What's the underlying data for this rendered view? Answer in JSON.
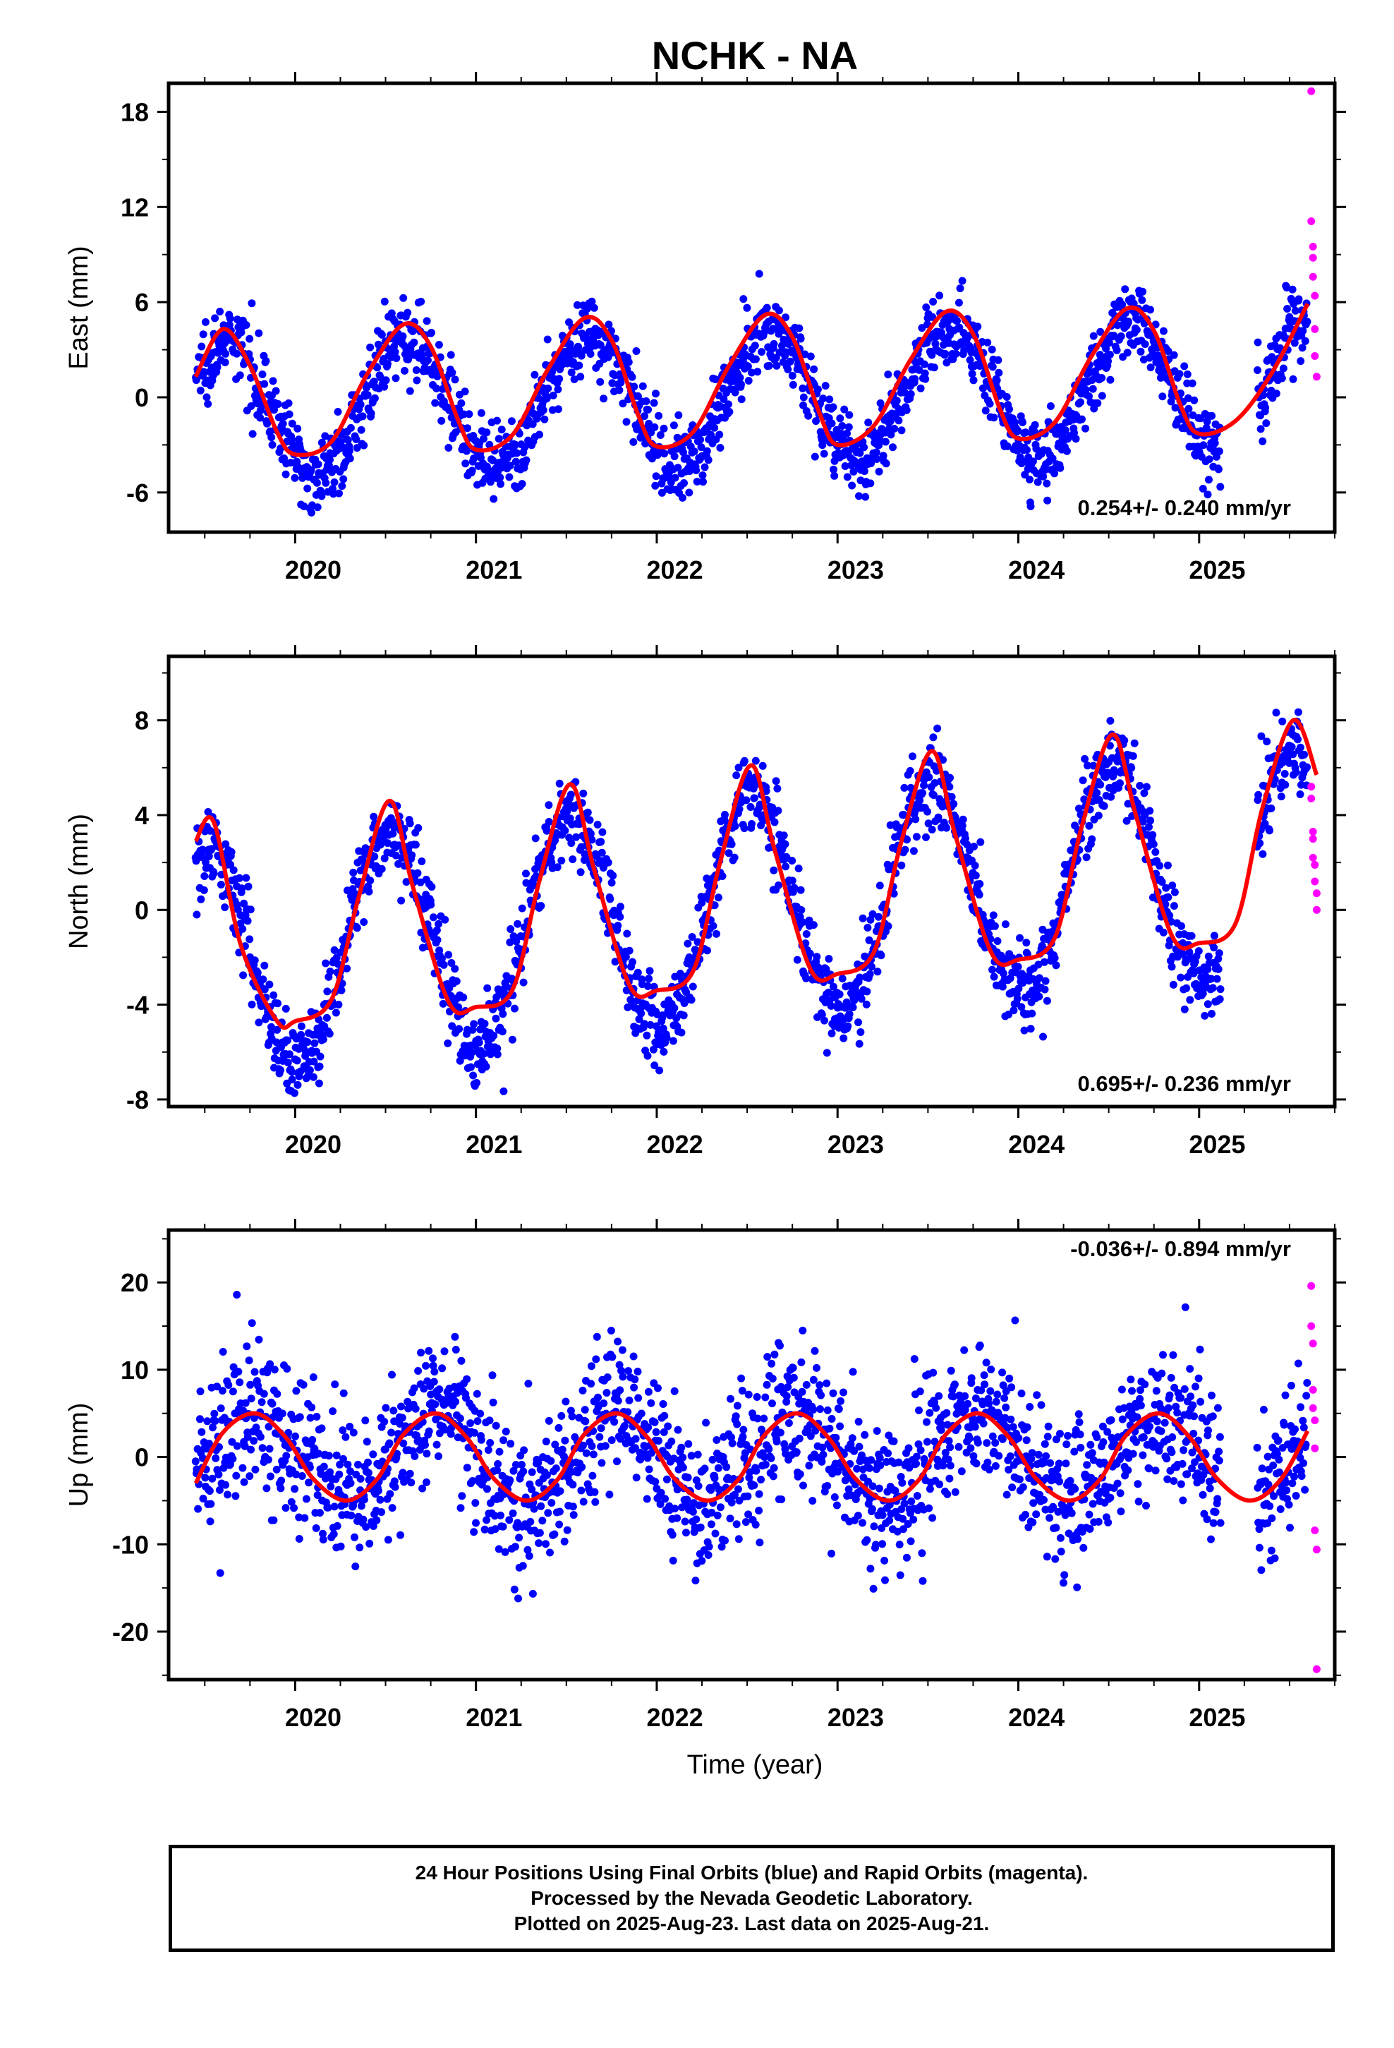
{
  "title": "NCHK - NA",
  "xlabel": "Time (year)",
  "colors": {
    "final_orbits": "#0000ff",
    "rapid_orbits": "#ff00ff",
    "model_fit": "#ff0000",
    "frame": "#000000"
  },
  "chart_data": [
    {
      "type": "scatter",
      "component": "east",
      "ylabel": "East (mm)",
      "xlim": [
        2019.3,
        2025.75
      ],
      "ylim": [
        -8.5,
        19.8
      ],
      "yticks": [
        -6,
        0,
        6,
        12,
        18
      ],
      "xticks": [
        2020,
        2021,
        2022,
        2023,
        2024,
        2025
      ],
      "rate_label": "0.254+/- 0.240 mm/yr",
      "series": [
        {
          "role": "final_orbits_scatter",
          "x_range": [
            2019.45,
            2025.6
          ],
          "amplitude": 4.2,
          "phase_peak": 0.62,
          "trend": 0.254,
          "noise": 1.2
        },
        {
          "role": "rapid_orbits_scatter",
          "x": [
            2025.62,
            2025.62,
            2025.63,
            2025.63,
            2025.63,
            2025.64,
            2025.64,
            2025.64,
            2025.65
          ],
          "y": [
            19.3,
            11.1,
            9.5,
            8.8,
            7.6,
            6.4,
            4.3,
            2.6,
            1.3
          ]
        },
        {
          "role": "model_fit_curve",
          "x": [
            2019.45,
            2019.6,
            2019.75,
            2019.9,
            2020.0,
            2020.2,
            2020.4,
            2020.6,
            2020.75,
            2020.9,
            2021.0,
            2021.2,
            2021.4,
            2021.6,
            2021.75,
            2021.9,
            2022.0,
            2022.2,
            2022.4,
            2022.6,
            2022.75,
            2022.9,
            2023.0,
            2023.2,
            2023.4,
            2023.6,
            2023.75,
            2023.9,
            2024.0,
            2024.2,
            2024.4,
            2024.6,
            2024.75,
            2024.9,
            2025.0,
            2025.2,
            2025.4,
            2025.6
          ],
          "y": [
            1.3,
            4.3,
            2.0,
            -2.2,
            -3.6,
            -2.8,
            1.5,
            4.6,
            3.2,
            -1.4,
            -3.3,
            -2.4,
            1.8,
            5.0,
            3.6,
            -1.2,
            -3.1,
            -2.2,
            2.0,
            5.2,
            3.8,
            -1.0,
            -3.0,
            -1.8,
            2.3,
            5.4,
            4.0,
            -0.8,
            -2.6,
            -1.6,
            2.5,
            5.6,
            4.2,
            -0.6,
            -2.3,
            -1.5,
            1.5,
            5.9
          ]
        }
      ]
    },
    {
      "type": "scatter",
      "component": "north",
      "ylabel": "North (mm)",
      "xlim": [
        2019.3,
        2025.75
      ],
      "ylim": [
        -8.3,
        10.7
      ],
      "yticks": [
        -8,
        -4,
        0,
        4,
        8
      ],
      "xticks": [
        2020,
        2021,
        2022,
        2023,
        2024,
        2025
      ],
      "rate_label": "0.695+/- 0.236 mm/yr",
      "series": [
        {
          "role": "final_orbits_scatter",
          "x_range": [
            2019.45,
            2025.6
          ],
          "amplitude": 4.7,
          "phase_peak": 0.52,
          "trend": 0.695,
          "noise": 0.9
        },
        {
          "role": "rapid_orbits_scatter",
          "x": [
            2025.62,
            2025.62,
            2025.63,
            2025.63,
            2025.63,
            2025.64,
            2025.64,
            2025.65,
            2025.65
          ],
          "y": [
            5.2,
            4.7,
            3.3,
            3.0,
            2.2,
            1.9,
            1.2,
            0.7,
            0.0
          ]
        },
        {
          "role": "model_fit_curve",
          "x": [
            2019.45,
            2019.55,
            2019.7,
            2019.9,
            2020.0,
            2020.2,
            2020.35,
            2020.52,
            2020.65,
            2020.85,
            2021.0,
            2021.2,
            2021.35,
            2021.52,
            2021.65,
            2021.85,
            2022.0,
            2022.2,
            2022.35,
            2022.52,
            2022.65,
            2022.85,
            2023.0,
            2023.2,
            2023.35,
            2023.52,
            2023.65,
            2023.85,
            2024.0,
            2024.2,
            2024.35,
            2024.52,
            2024.65,
            2024.85,
            2025.0,
            2025.2,
            2025.35,
            2025.52,
            2025.65
          ],
          "y": [
            2.9,
            3.7,
            -1.5,
            -4.7,
            -4.7,
            -3.8,
            0.5,
            4.6,
            1.0,
            -3.9,
            -4.1,
            -3.4,
            1.2,
            5.3,
            1.8,
            -3.2,
            -3.4,
            -2.6,
            2.0,
            6.1,
            2.6,
            -2.5,
            -2.7,
            -1.8,
            2.8,
            6.7,
            3.2,
            -1.8,
            -2.1,
            -1.2,
            3.5,
            7.4,
            4.0,
            -1.1,
            -1.4,
            -0.6,
            4.3,
            8.0,
            5.7
          ]
        }
      ]
    },
    {
      "type": "scatter",
      "component": "up",
      "ylabel": "Up (mm)",
      "xlim": [
        2019.3,
        2025.75
      ],
      "ylim": [
        -25.5,
        26.0
      ],
      "yticks": [
        -20,
        -10,
        0,
        10,
        20
      ],
      "xticks": [
        2020,
        2021,
        2022,
        2023,
        2024,
        2025
      ],
      "rate_label": "-0.036+/- 0.894 mm/yr",
      "series": [
        {
          "role": "final_orbits_scatter",
          "x_range": [
            2019.45,
            2025.6
          ],
          "amplitude": 5.0,
          "phase_peak": 0.78,
          "trend": -0.036,
          "noise": 4.2
        },
        {
          "role": "rapid_orbits_scatter",
          "x": [
            2025.62,
            2025.62,
            2025.63,
            2025.63,
            2025.63,
            2025.64,
            2025.64,
            2025.64,
            2025.65,
            2025.65
          ],
          "y": [
            19.6,
            15.0,
            13.0,
            7.7,
            5.6,
            4.2,
            1.0,
            -8.4,
            -10.6,
            -24.3
          ]
        },
        {
          "role": "model_fit_curve",
          "x": [
            2019.45,
            2019.6,
            2019.78,
            2019.95,
            2020.1,
            2020.28,
            2020.45,
            2020.6,
            2020.78,
            2020.95,
            2021.1,
            2021.28,
            2021.45,
            2021.6,
            2021.78,
            2021.95,
            2022.1,
            2022.28,
            2022.45,
            2022.6,
            2022.78,
            2022.95,
            2023.1,
            2023.28,
            2023.45,
            2023.6,
            2023.78,
            2023.95,
            2024.1,
            2024.28,
            2024.45,
            2024.6,
            2024.78,
            2024.95,
            2025.1,
            2025.28,
            2025.45,
            2025.6
          ],
          "y": [
            -3.0,
            2.8,
            5.0,
            2.2,
            -2.5,
            -5.0,
            -2.6,
            2.6,
            5.0,
            2.2,
            -2.5,
            -5.0,
            -2.6,
            2.6,
            5.0,
            2.2,
            -2.5,
            -5.0,
            -2.6,
            2.6,
            5.0,
            2.2,
            -2.5,
            -5.0,
            -2.6,
            2.6,
            5.0,
            2.2,
            -2.5,
            -5.0,
            -2.6,
            2.6,
            5.0,
            2.2,
            -2.5,
            -5.0,
            -2.6,
            3.0
          ]
        }
      ]
    }
  ],
  "footer": {
    "line1": "24 Hour Positions Using Final Orbits (blue) and Rapid Orbits (magenta).",
    "line2": "Processed by the Nevada Geodetic Laboratory.",
    "line3": "Plotted on 2025-Aug-23. Last data on 2025-Aug-21."
  }
}
